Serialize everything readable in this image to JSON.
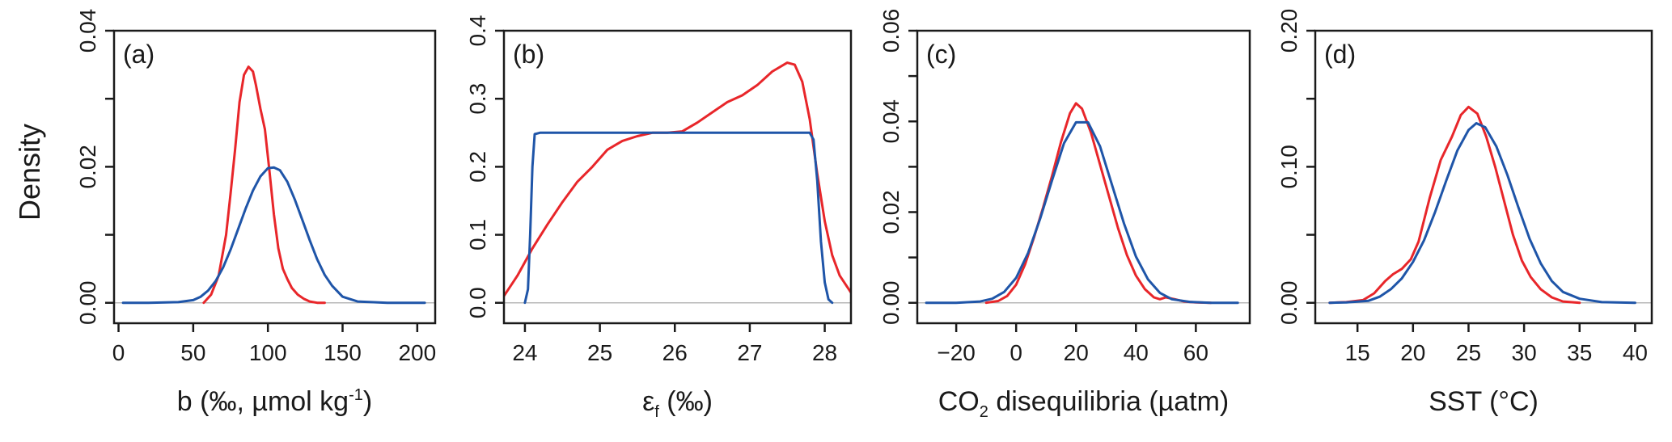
{
  "figure": {
    "y_label": "Density",
    "colors": {
      "series_a": "#e8262a",
      "series_b": "#1f55a8",
      "baseline": "#b8b8b8",
      "axis": "#1a1a1a"
    }
  },
  "chart_data": [
    {
      "panel": "(a)",
      "type": "line",
      "xlabel": "b (‰, µmol kg",
      "xlabel_sup": "-1",
      "xlabel_end": ")",
      "ylabel": "Density",
      "xlim": [
        -3,
        212
      ],
      "ylim": [
        -0.003,
        0.04
      ],
      "xticks": [
        0,
        50,
        100,
        150,
        200
      ],
      "yticks": [
        0.0,
        0.02,
        0.04
      ],
      "ytick_labels": [
        "0.00",
        "0.02",
        "0.04"
      ],
      "yminor": [
        0.01,
        0.03
      ],
      "series": [
        {
          "name": "red",
          "color": "#e8262a",
          "x": [
            57,
            62,
            67,
            72,
            75,
            78,
            81,
            84,
            87,
            90,
            92,
            95,
            98,
            101,
            104,
            107,
            110,
            113,
            116,
            120,
            124,
            128,
            133,
            138
          ],
          "y": [
            0.0,
            0.0012,
            0.004,
            0.01,
            0.016,
            0.0225,
            0.0295,
            0.0335,
            0.0347,
            0.034,
            0.032,
            0.0285,
            0.0255,
            0.0195,
            0.013,
            0.008,
            0.005,
            0.0035,
            0.0022,
            0.0012,
            0.0006,
            0.0002,
            0.0,
            0.0
          ]
        },
        {
          "name": "blue",
          "color": "#1f55a8",
          "x": [
            3,
            20,
            40,
            50,
            55,
            60,
            65,
            70,
            75,
            80,
            85,
            90,
            95,
            100,
            104,
            108,
            113,
            118,
            123,
            128,
            133,
            138,
            143,
            150,
            160,
            180,
            205
          ],
          "y": [
            0.0,
            0.0,
            0.0001,
            0.0004,
            0.0009,
            0.0018,
            0.0032,
            0.0052,
            0.0078,
            0.0108,
            0.0138,
            0.0165,
            0.0186,
            0.0198,
            0.0199,
            0.0195,
            0.0178,
            0.0152,
            0.0122,
            0.0092,
            0.0064,
            0.0041,
            0.0025,
            0.0009,
            0.0002,
            0.0,
            0.0
          ]
        }
      ]
    },
    {
      "panel": "(b)",
      "type": "line",
      "xlabel": "ε",
      "xlabel_sub": "f",
      "xlabel_end": " (‰)",
      "xlim": [
        23.72,
        28.35
      ],
      "ylim": [
        -0.03,
        0.4
      ],
      "xticks": [
        24,
        25,
        26,
        27,
        28
      ],
      "yticks": [
        0.0,
        0.1,
        0.2,
        0.3,
        0.4
      ],
      "ytick_labels": [
        "0.0",
        "0.1",
        "0.2",
        "0.3",
        "0.4"
      ],
      "yminor": [],
      "series": [
        {
          "name": "red",
          "color": "#e8262a",
          "x": [
            23.72,
            23.9,
            24.1,
            24.3,
            24.5,
            24.7,
            24.9,
            25.1,
            25.3,
            25.5,
            25.7,
            25.9,
            26.1,
            26.3,
            26.5,
            26.7,
            26.9,
            27.1,
            27.3,
            27.5,
            27.6,
            27.7,
            27.8,
            27.9,
            28.0,
            28.1,
            28.2,
            28.35
          ],
          "y": [
            0.01,
            0.04,
            0.08,
            0.115,
            0.148,
            0.178,
            0.2,
            0.225,
            0.238,
            0.245,
            0.25,
            0.25,
            0.252,
            0.265,
            0.28,
            0.295,
            0.305,
            0.32,
            0.34,
            0.353,
            0.35,
            0.325,
            0.27,
            0.19,
            0.12,
            0.07,
            0.04,
            0.015
          ]
        },
        {
          "name": "blue",
          "color": "#1f55a8",
          "x": [
            24.0,
            24.04,
            24.07,
            24.1,
            24.13,
            24.2,
            24.5,
            25.0,
            25.5,
            26.0,
            26.5,
            27.0,
            27.5,
            27.8,
            27.85,
            27.9,
            27.95,
            28.0,
            28.05,
            28.1
          ],
          "y": [
            0.0,
            0.02,
            0.1,
            0.2,
            0.248,
            0.25,
            0.25,
            0.25,
            0.25,
            0.25,
            0.25,
            0.25,
            0.25,
            0.25,
            0.24,
            0.18,
            0.09,
            0.03,
            0.005,
            0.0
          ]
        }
      ]
    },
    {
      "panel": "(c)",
      "type": "line",
      "xlabel": "CO",
      "xlabel_sub": "2",
      "xlabel_end": " disequilibria (µatm)",
      "xlim": [
        -33,
        78
      ],
      "ylim": [
        -0.0045,
        0.06
      ],
      "xticks": [
        -20,
        0,
        20,
        40,
        60
      ],
      "yticks": [
        0.0,
        0.02,
        0.04,
        0.06
      ],
      "ytick_labels": [
        "0.00",
        "0.02",
        "0.04",
        "0.06"
      ],
      "yminor": [
        0.01,
        0.03,
        0.05
      ],
      "series": [
        {
          "name": "red",
          "color": "#e8262a",
          "x": [
            -10,
            -6,
            -3,
            0,
            3,
            6,
            9,
            12,
            15,
            18,
            20,
            22,
            25,
            28,
            31,
            34,
            37,
            40,
            43,
            46,
            48,
            50,
            53,
            56,
            60,
            65
          ],
          "y": [
            0.0,
            0.0004,
            0.0015,
            0.004,
            0.0085,
            0.0145,
            0.021,
            0.028,
            0.0355,
            0.0418,
            0.044,
            0.0428,
            0.0375,
            0.0305,
            0.0235,
            0.0165,
            0.0105,
            0.006,
            0.003,
            0.0012,
            0.0008,
            0.0012,
            0.0008,
            0.0003,
            0.0001,
            0.0
          ]
        },
        {
          "name": "blue",
          "color": "#1f55a8",
          "x": [
            -30,
            -20,
            -12,
            -8,
            -4,
            0,
            4,
            8,
            12,
            16,
            20,
            24,
            28,
            32,
            36,
            40,
            44,
            48,
            52,
            58,
            65,
            74
          ],
          "y": [
            0.0,
            0.0,
            0.0003,
            0.0009,
            0.0024,
            0.0055,
            0.011,
            0.0185,
            0.027,
            0.0352,
            0.0398,
            0.0398,
            0.0345,
            0.026,
            0.0175,
            0.0102,
            0.0052,
            0.0022,
            0.0008,
            0.0002,
            0.0,
            0.0
          ]
        }
      ]
    },
    {
      "panel": "(d)",
      "type": "line",
      "xlabel": "SST (°C)",
      "xlim": [
        11.2,
        41.5
      ],
      "ylim": [
        -0.015,
        0.2
      ],
      "xticks": [
        15,
        20,
        25,
        30,
        35,
        40
      ],
      "yticks": [
        0.0,
        0.1,
        0.2
      ],
      "ytick_labels": [
        "0.00",
        "0.10",
        "0.20"
      ],
      "yminor": [
        0.05,
        0.15
      ],
      "series": [
        {
          "name": "red",
          "color": "#e8262a",
          "x": [
            12.5,
            14,
            15.5,
            16.5,
            17.5,
            18.2,
            19,
            19.8,
            20.5,
            21.5,
            22.5,
            23.5,
            24.3,
            25,
            25.8,
            26.6,
            27.4,
            28.2,
            29,
            29.8,
            30.6,
            31.5,
            32.5,
            33.5,
            35
          ],
          "y": [
            0.0,
            0.0005,
            0.002,
            0.007,
            0.016,
            0.021,
            0.025,
            0.032,
            0.045,
            0.077,
            0.105,
            0.122,
            0.138,
            0.144,
            0.139,
            0.122,
            0.1,
            0.075,
            0.05,
            0.031,
            0.019,
            0.01,
            0.004,
            0.001,
            0.0
          ]
        },
        {
          "name": "blue",
          "color": "#1f55a8",
          "x": [
            12.5,
            14,
            16,
            17,
            18,
            19,
            20,
            21,
            22,
            23,
            24,
            25,
            25.7,
            26.5,
            27.5,
            28.5,
            29.5,
            30.5,
            31.5,
            32.5,
            33.5,
            35,
            37,
            40
          ],
          "y": [
            0.0,
            0.0003,
            0.0015,
            0.0045,
            0.01,
            0.018,
            0.03,
            0.046,
            0.067,
            0.09,
            0.112,
            0.127,
            0.132,
            0.129,
            0.115,
            0.094,
            0.07,
            0.047,
            0.029,
            0.016,
            0.008,
            0.003,
            0.0005,
            0.0
          ]
        }
      ]
    }
  ]
}
